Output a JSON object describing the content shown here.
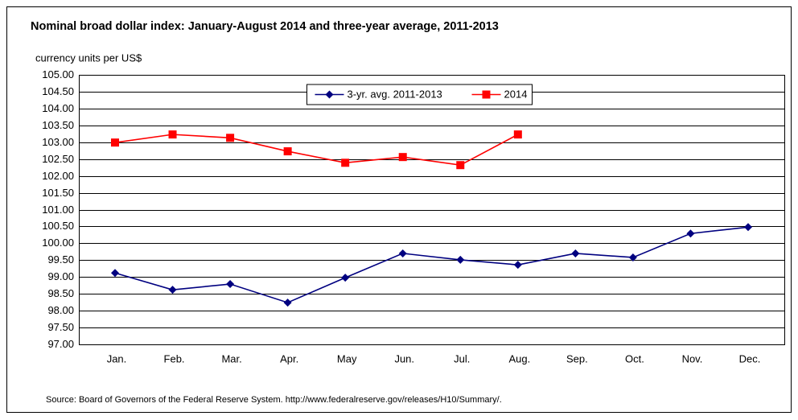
{
  "chart_data": {
    "type": "line",
    "title": "Nominal broad dollar index: January-August 2014 and three-year average, 2011-2013",
    "y_label": "currency units per US$",
    "source": "Source:  Board of Governors of the Federal Reserve System. http://www.federalreserve.gov/releases/H10/Summary/.",
    "categories": [
      "Jan.",
      "Feb.",
      "Mar.",
      "Apr.",
      "May",
      "Jun.",
      "Jul.",
      "Aug.",
      "Sep.",
      "Oct.",
      "Nov.",
      "Dec."
    ],
    "series": [
      {
        "name": "3-yr. avg. 2011-2013",
        "color": "#000080",
        "marker": "diamond",
        "values": [
          99.12,
          98.62,
          98.79,
          98.24,
          98.98,
          99.7,
          99.51,
          99.36,
          99.7,
          99.58,
          100.29,
          100.48
        ]
      },
      {
        "name": "2014",
        "color": "#ff0000",
        "marker": "square",
        "values": [
          102.99,
          103.23,
          103.13,
          102.73,
          102.39,
          102.56,
          102.32,
          103.23,
          null,
          null,
          null,
          null
        ]
      }
    ],
    "ylim": [
      97,
      105
    ],
    "yticks": [
      {
        "value": 97,
        "label": "97.00"
      },
      {
        "value": 97.5,
        "label": "97.50"
      },
      {
        "value": 98,
        "label": "98.00"
      },
      {
        "value": 98.5,
        "label": "98.50"
      },
      {
        "value": 99,
        "label": "99.00"
      },
      {
        "value": 99.5,
        "label": "99.50"
      },
      {
        "value": 100,
        "label": "100.00"
      },
      {
        "value": 100.5,
        "label": "100.50"
      },
      {
        "value": 101,
        "label": "101.00"
      },
      {
        "value": 101.5,
        "label": "101.50"
      },
      {
        "value": 102,
        "label": "102.00"
      },
      {
        "value": 102.5,
        "label": "102.50"
      },
      {
        "value": 103,
        "label": "103.00"
      },
      {
        "value": 103.5,
        "label": "103.50"
      },
      {
        "value": 104,
        "label": "104.00"
      },
      {
        "value": 104.5,
        "label": "104.50"
      },
      {
        "value": 105,
        "label": "105.00"
      }
    ],
    "grid": true,
    "legend": "upper center"
  }
}
